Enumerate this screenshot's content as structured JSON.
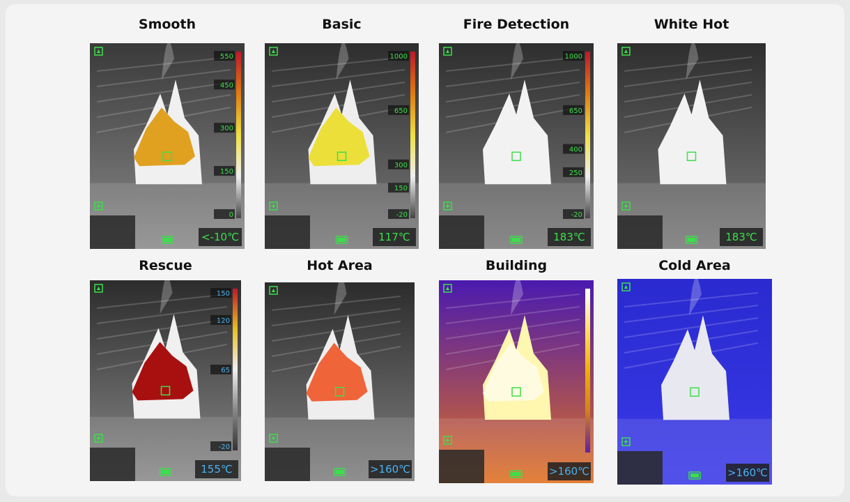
{
  "panels": [
    {
      "title": "Smooth",
      "scale": [
        550,
        450,
        300,
        150,
        0
      ],
      "readout": "<-10℃"
    },
    {
      "title": "Basic",
      "scale": [
        1000,
        650,
        300,
        150,
        -20
      ],
      "readout": "117℃"
    },
    {
      "title": "Fire Detection",
      "scale": [
        1000,
        650,
        400,
        250,
        -20
      ],
      "readout": "183℃"
    },
    {
      "title": "White Hot",
      "readout": "183℃"
    },
    {
      "title": "Rescue",
      "scale": [
        150,
        120,
        65,
        -20
      ],
      "readout": "155℃"
    },
    {
      "title": "Hot Area",
      "readout": ">160℃"
    },
    {
      "title": "Building",
      "readout": ">160℃"
    },
    {
      "title": "Cold Area",
      "readout": ">160℃"
    }
  ]
}
